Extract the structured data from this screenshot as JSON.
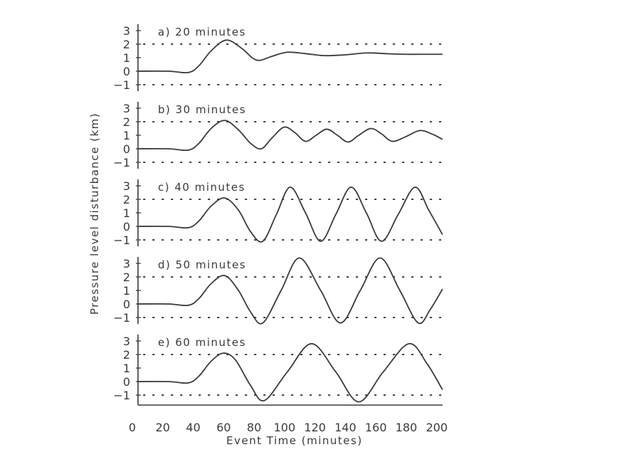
{
  "chart_data": {
    "type": "line",
    "xlabel": "Event Time (minutes)",
    "ylabel": "Pressure level disturbance (km)",
    "xlim": [
      0,
      200
    ],
    "xticks": [
      0,
      20,
      40,
      60,
      80,
      100,
      120,
      140,
      160,
      180,
      200
    ],
    "ylim": [
      -1.5,
      3.4
    ],
    "yticks": [
      3,
      2,
      1,
      0,
      -1
    ],
    "grid": {
      "dotted_lines_at_y": [
        2,
        -1
      ]
    },
    "line_color": "#3a3a3a",
    "panels": [
      {
        "label": "a) 20 minutes",
        "points": [
          [
            0,
            0
          ],
          [
            20,
            0
          ],
          [
            33,
            -0.1
          ],
          [
            40,
            0.4
          ],
          [
            48,
            1.5
          ],
          [
            58,
            2.3
          ],
          [
            68,
            1.7
          ],
          [
            75,
            1.0
          ],
          [
            80,
            0.8
          ],
          [
            88,
            1.1
          ],
          [
            98,
            1.4
          ],
          [
            110,
            1.3
          ],
          [
            122,
            1.15
          ],
          [
            135,
            1.2
          ],
          [
            150,
            1.35
          ],
          [
            162,
            1.3
          ],
          [
            175,
            1.25
          ],
          [
            190,
            1.25
          ],
          [
            200,
            1.25
          ]
        ]
      },
      {
        "label": "b) 30 minutes",
        "points": [
          [
            0,
            0
          ],
          [
            20,
            0
          ],
          [
            33,
            -0.1
          ],
          [
            40,
            0.4
          ],
          [
            48,
            1.5
          ],
          [
            57,
            2.1
          ],
          [
            66,
            1.4
          ],
          [
            74,
            0.4
          ],
          [
            81,
            0
          ],
          [
            88,
            0.8
          ],
          [
            96,
            1.6
          ],
          [
            103,
            1.2
          ],
          [
            110,
            0.55
          ],
          [
            117,
            1.0
          ],
          [
            124,
            1.45
          ],
          [
            131,
            1.0
          ],
          [
            138,
            0.5
          ],
          [
            145,
            1.0
          ],
          [
            153,
            1.5
          ],
          [
            160,
            1.1
          ],
          [
            167,
            0.55
          ],
          [
            176,
            0.9
          ],
          [
            185,
            1.35
          ],
          [
            193,
            1.1
          ],
          [
            200,
            0.7
          ]
        ]
      },
      {
        "label": "c) 40 minutes",
        "points": [
          [
            0,
            0
          ],
          [
            20,
            0
          ],
          [
            33,
            -0.1
          ],
          [
            40,
            0.4
          ],
          [
            48,
            1.5
          ],
          [
            57,
            2.1
          ],
          [
            66,
            1.2
          ],
          [
            74,
            -0.4
          ],
          [
            82,
            -1.1
          ],
          [
            91,
            0.9
          ],
          [
            100,
            2.9
          ],
          [
            110,
            1.0
          ],
          [
            120,
            -1.1
          ],
          [
            130,
            0.9
          ],
          [
            140,
            2.9
          ],
          [
            150,
            1.0
          ],
          [
            160,
            -1.1
          ],
          [
            171,
            0.9
          ],
          [
            182,
            2.9
          ],
          [
            191,
            1.2
          ],
          [
            200,
            -0.6
          ]
        ]
      },
      {
        "label": "d) 50 minutes",
        "points": [
          [
            0,
            0
          ],
          [
            20,
            0
          ],
          [
            33,
            -0.1
          ],
          [
            40,
            0.4
          ],
          [
            48,
            1.5
          ],
          [
            57,
            2.1
          ],
          [
            66,
            1.0
          ],
          [
            74,
            -0.6
          ],
          [
            82,
            -1.4
          ],
          [
            94,
            1.0
          ],
          [
            106,
            3.4
          ],
          [
            120,
            1.0
          ],
          [
            133,
            -1.4
          ],
          [
            146,
            1.0
          ],
          [
            159,
            3.4
          ],
          [
            172,
            1.0
          ],
          [
            184,
            -1.4
          ],
          [
            192,
            -0.4
          ],
          [
            200,
            1.1
          ]
        ]
      },
      {
        "label": "e) 60 minutes",
        "points": [
          [
            0,
            0
          ],
          [
            20,
            0
          ],
          [
            33,
            -0.1
          ],
          [
            40,
            0.4
          ],
          [
            48,
            1.5
          ],
          [
            56,
            2.1
          ],
          [
            64,
            1.6
          ],
          [
            74,
            -0.3
          ],
          [
            83,
            -1.4
          ],
          [
            98,
            0.7
          ],
          [
            114,
            2.8
          ],
          [
            130,
            0.7
          ],
          [
            145,
            -1.5
          ],
          [
            161,
            0.7
          ],
          [
            178,
            2.8
          ],
          [
            190,
            1.3
          ],
          [
            200,
            -0.6
          ]
        ]
      }
    ]
  }
}
